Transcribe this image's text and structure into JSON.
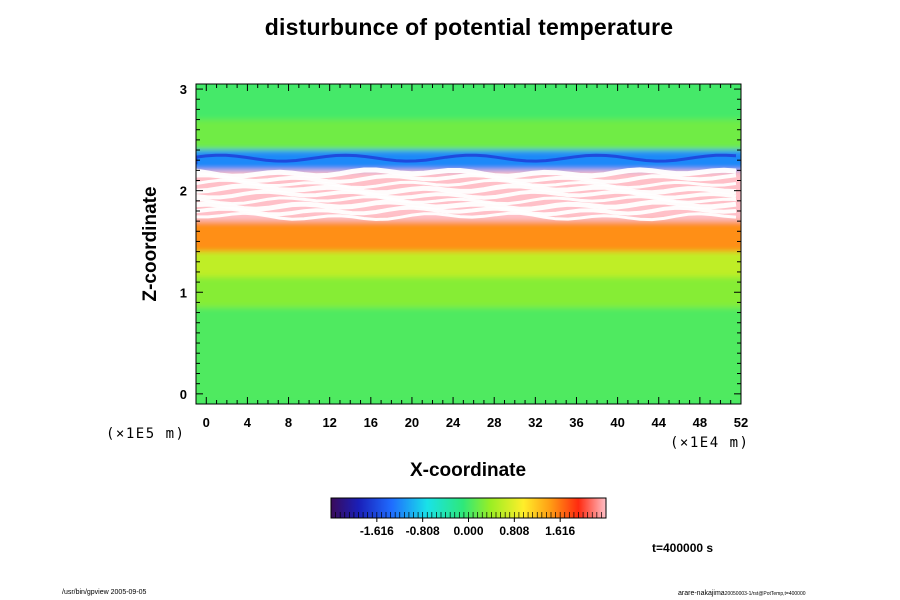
{
  "chart_data": {
    "type": "heatmap",
    "title": "disturbunce of potential temperature",
    "xlabel": "X-coordinate",
    "ylabel": "Z-coordinate",
    "x_unit": "(×1E4 m)",
    "y_unit": "(×1E5 m)",
    "xlim": [
      -1,
      52
    ],
    "ylim": [
      -0.1,
      3.05
    ],
    "x_ticks": [
      0,
      4,
      8,
      12,
      16,
      20,
      24,
      28,
      32,
      36,
      40,
      44,
      48,
      52
    ],
    "y_ticks": [
      0,
      1,
      2,
      3
    ],
    "colorbar": {
      "tick_values": [
        -1.616,
        -0.808,
        0.0,
        0.808,
        1.616
      ],
      "tick_labels": [
        "-1.616",
        "-0.808",
        "0.000",
        "0.808",
        "1.616"
      ],
      "range": [
        -2.424,
        2.424
      ]
    },
    "bands": [
      {
        "z_range": [
          -0.1,
          0.85
        ],
        "value": 0.05
      },
      {
        "z_range": [
          0.85,
          1.15
        ],
        "value": 0.3
      },
      {
        "z_range": [
          1.15,
          1.4
        ],
        "value": 0.6
      },
      {
        "z_range": [
          1.4,
          1.7
        ],
        "value": 1.5
      },
      {
        "z_range": [
          1.7,
          2.2
        ],
        "value": 2.6
      },
      {
        "z_range": [
          2.2,
          2.4
        ],
        "value": -1.2
      },
      {
        "z_range": [
          2.4,
          2.7
        ],
        "value": 0.2
      },
      {
        "z_range": [
          2.7,
          3.05
        ],
        "value": 0.0
      }
    ],
    "time_label": "t=400000 s"
  },
  "footer": {
    "left": "/usr/bin/gpview 2005-09-05",
    "right_main": "arare-nakajima",
    "right_small": "20050003-1/rst@PotTemp,t=400000"
  }
}
